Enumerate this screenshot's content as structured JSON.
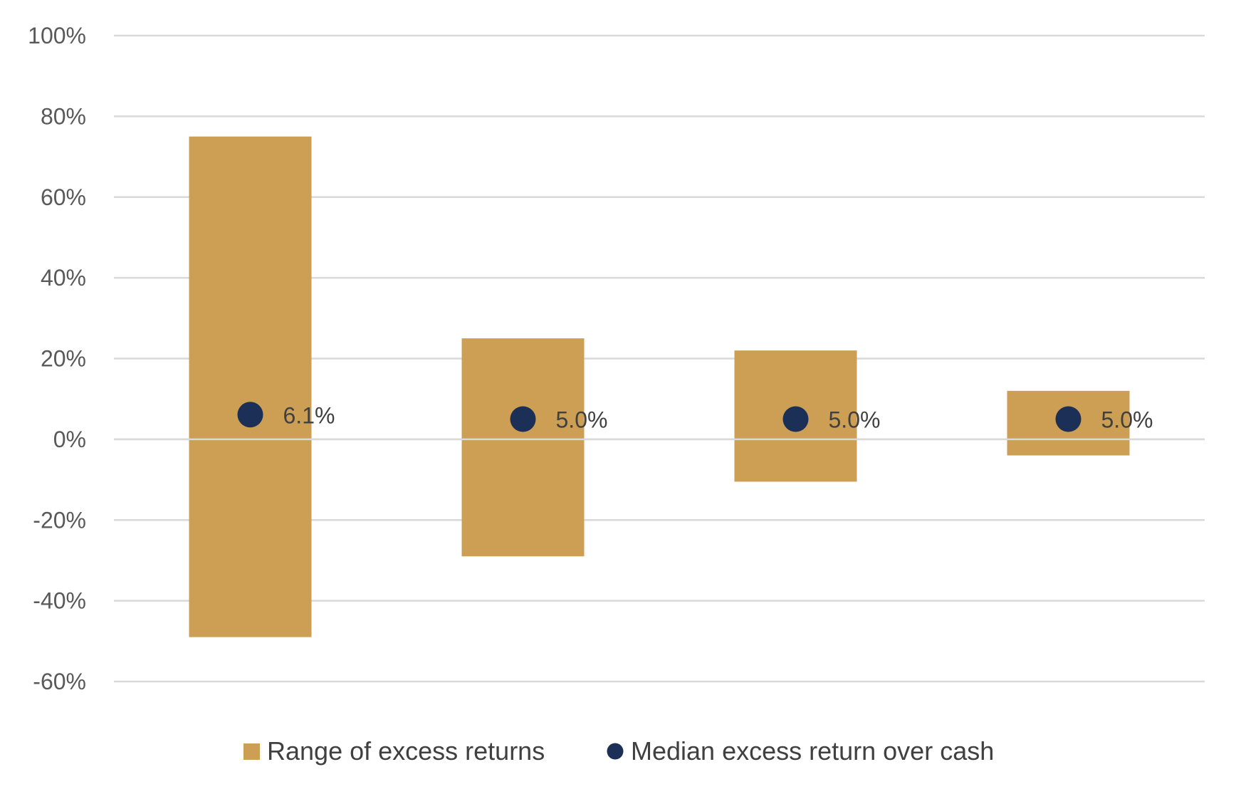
{
  "chart_data": {
    "type": "bar",
    "title": "",
    "xlabel": "",
    "ylabel": "",
    "ylim": [
      -60,
      100
    ],
    "yticks": [
      100,
      80,
      60,
      40,
      20,
      0,
      -20,
      -40,
      -60
    ],
    "ytick_labels": [
      "100%",
      "80%",
      "60%",
      "40%",
      "20%",
      "0%",
      "-20%",
      "-40%",
      "-60%"
    ],
    "grid": true,
    "legend_position": "bottom",
    "categories": [
      "",
      "",
      "",
      ""
    ],
    "series": [
      {
        "name": "Range of excess returns",
        "kind": "floating-bar",
        "color": "#CC9F55",
        "low": [
          -49,
          -29,
          -10.5,
          -4
        ],
        "high": [
          75,
          25,
          22,
          12
        ]
      },
      {
        "name": "Median excess return over cash",
        "kind": "point",
        "color": "#1B2F57",
        "values": [
          6.1,
          5.0,
          5.0,
          5.0
        ],
        "labels": [
          "6.1%",
          "5.0%",
          "5.0%",
          "5.0%"
        ]
      }
    ]
  },
  "colors": {
    "grid": "#D9D9D9",
    "axis_text": "#595959",
    "label_text": "#404040"
  }
}
